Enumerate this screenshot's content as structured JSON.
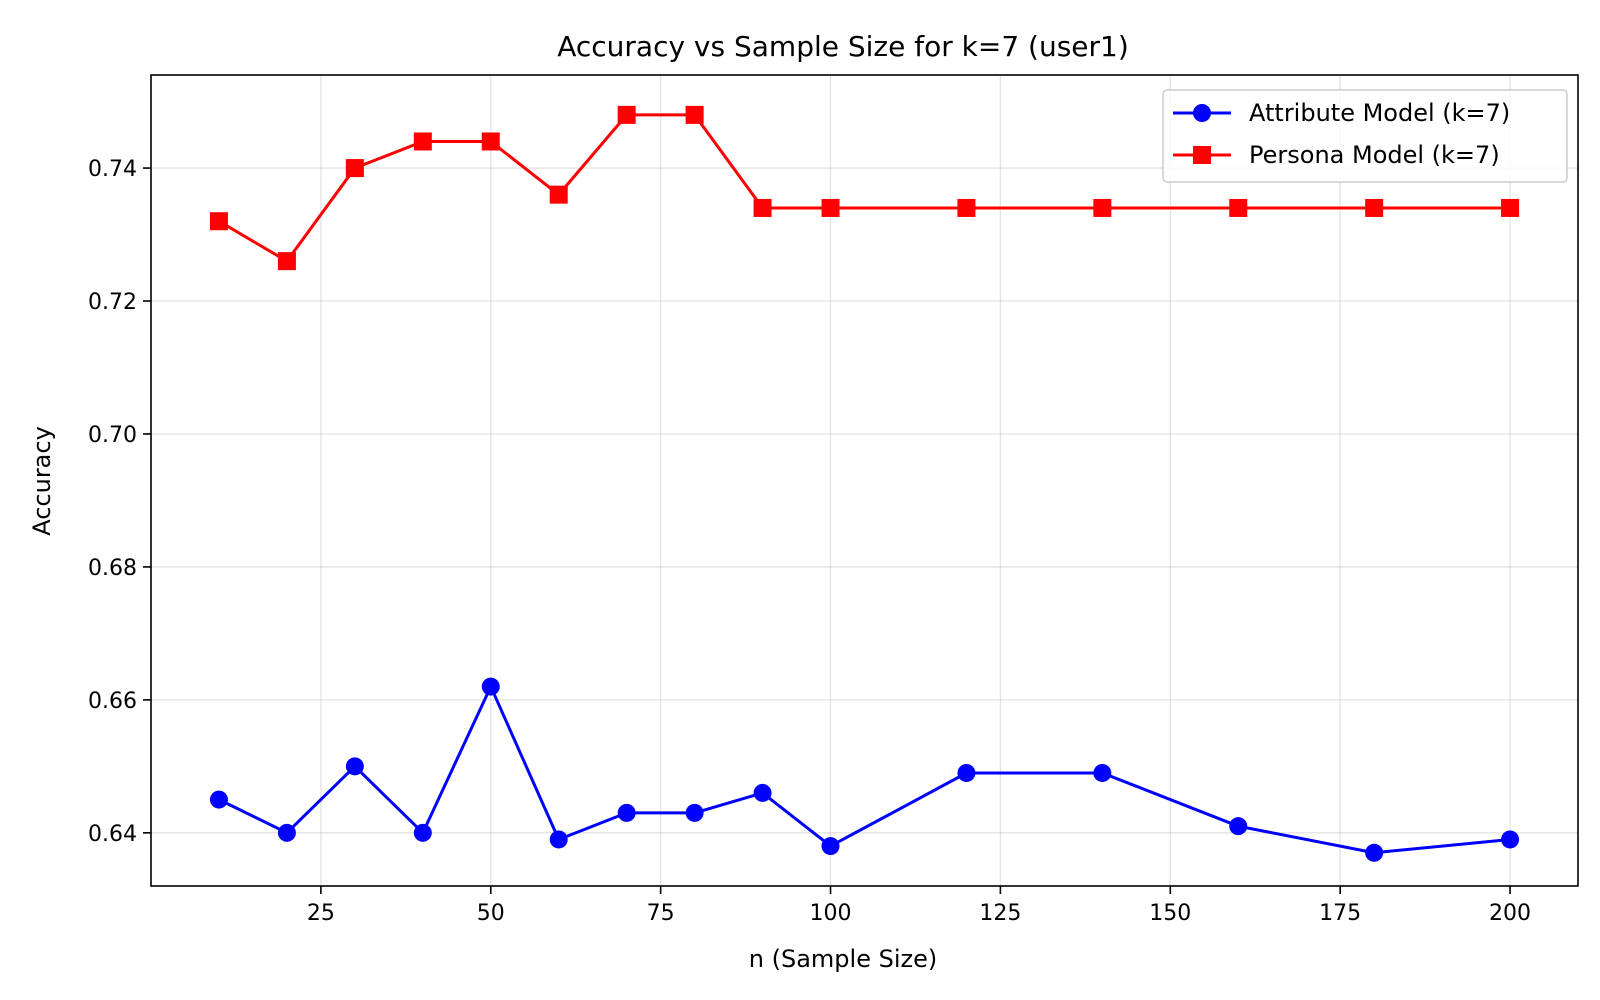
{
  "chart_data": {
    "type": "line",
    "title": "Accuracy vs Sample Size for k=7 (user1)",
    "xlabel": "n (Sample Size)",
    "ylabel": "Accuracy",
    "xlim": [
      0,
      210
    ],
    "ylim": [
      0.632,
      0.754
    ],
    "x_ticks": [
      25,
      50,
      75,
      100,
      125,
      150,
      175,
      200
    ],
    "x_tick_labels": [
      "25",
      "50",
      "75",
      "100",
      "125",
      "150",
      "175",
      "200"
    ],
    "y_ticks": [
      0.64,
      0.66,
      0.68,
      0.7,
      0.72,
      0.74
    ],
    "y_tick_labels": [
      "0.64",
      "0.66",
      "0.68",
      "0.70",
      "0.72",
      "0.74"
    ],
    "grid": true,
    "legend_position": "top-right",
    "x": [
      10,
      20,
      30,
      40,
      50,
      60,
      70,
      80,
      90,
      100,
      120,
      140,
      160,
      180,
      200
    ],
    "series": [
      {
        "name": "Attribute Model (k=7)",
        "color": "#0000ff",
        "marker": "circle",
        "values": [
          0.645,
          0.64,
          0.65,
          0.64,
          0.662,
          0.639,
          0.643,
          0.643,
          0.646,
          0.638,
          0.649,
          0.649,
          0.641,
          0.637,
          0.639
        ]
      },
      {
        "name": "Persona Model (k=7)",
        "color": "#ff0000",
        "marker": "square",
        "values": [
          0.732,
          0.726,
          0.74,
          0.744,
          0.744,
          0.736,
          0.748,
          0.748,
          0.734,
          0.734,
          0.734,
          0.734,
          0.734,
          0.734,
          0.734
        ]
      }
    ]
  }
}
